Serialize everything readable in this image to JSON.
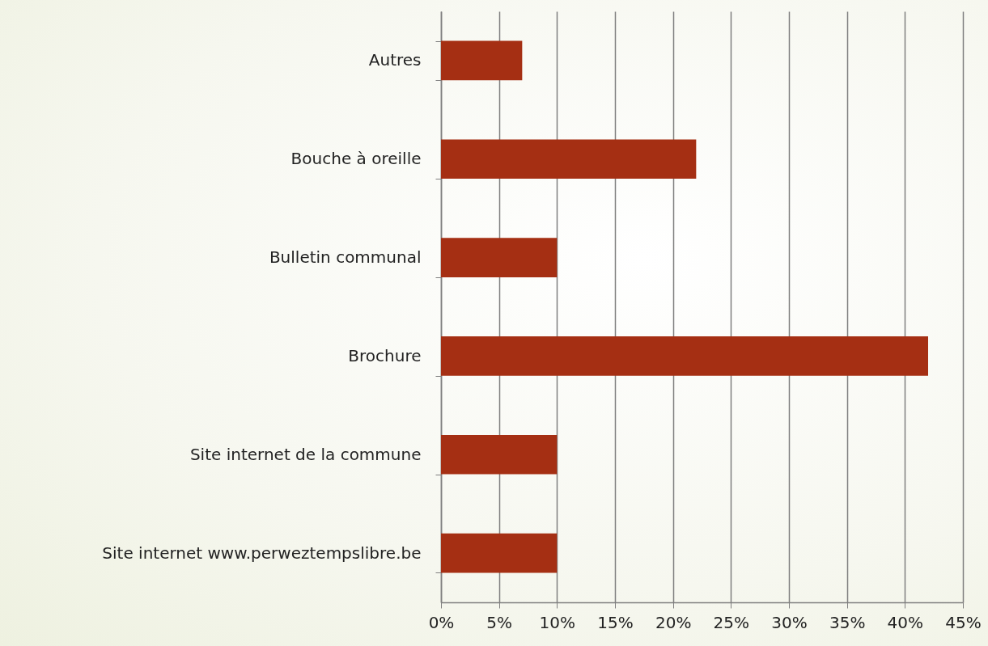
{
  "chart_data": {
    "type": "bar",
    "orientation": "horizontal",
    "categories": [
      "Autres",
      "Bouche à oreille",
      "Bulletin communal",
      "Brochure",
      "Site internet de la commune",
      "Site internet www.perweztempslibre.be"
    ],
    "values": [
      7,
      22,
      10,
      42,
      10,
      10
    ],
    "color": "#a52f13",
    "xlim": [
      0,
      45
    ],
    "xticks": [
      {
        "value": 0,
        "label": "0%"
      },
      {
        "value": 5,
        "label": "5%"
      },
      {
        "value": 10,
        "label": "10%"
      },
      {
        "value": 15,
        "label": "15%"
      },
      {
        "value": 20,
        "label": "20%"
      },
      {
        "value": 25,
        "label": "25%"
      },
      {
        "value": 30,
        "label": "30%"
      },
      {
        "value": 35,
        "label": "35%"
      },
      {
        "value": 40,
        "label": "40%"
      },
      {
        "value": 45,
        "label": "45%"
      }
    ],
    "grid": "x"
  }
}
